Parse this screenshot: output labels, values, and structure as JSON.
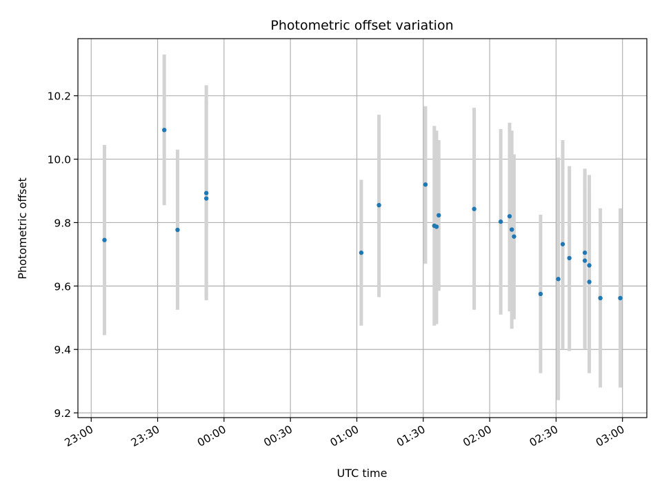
{
  "chart_data": {
    "type": "scatter",
    "title": "Photometric offset variation",
    "xlabel": "UTC time",
    "ylabel": "Photometric offset",
    "grid": true,
    "x_axis": {
      "kind": "time",
      "range": [
        "22:54",
        "03:11"
      ],
      "ticks": [
        "23:00",
        "23:30",
        "00:00",
        "00:30",
        "01:00",
        "01:30",
        "02:00",
        "02:30",
        "03:00"
      ]
    },
    "y_axis": {
      "range": [
        9.185,
        10.38
      ],
      "ticks": [
        "9.2",
        "9.4",
        "9.6",
        "9.8",
        "10.0",
        "10.2"
      ]
    },
    "colors": {
      "points": "#1f77b4",
      "errorbars": "#d3d3d3",
      "grid": "#b0b0b0"
    },
    "points": [
      {
        "time": "23:06",
        "y": 9.745,
        "ylow": 9.445,
        "yhigh": 10.045
      },
      {
        "time": "23:33",
        "y": 10.092,
        "ylow": 9.855,
        "yhigh": 10.33
      },
      {
        "time": "23:39",
        "y": 9.777,
        "ylow": 9.525,
        "yhigh": 10.03
      },
      {
        "time": "23:52",
        "y": 9.893,
        "ylow": 9.555,
        "yhigh": 10.233
      },
      {
        "time": "23:52",
        "y": 9.876,
        "ylow": 9.565,
        "yhigh": 10.185
      },
      {
        "time": "01:02",
        "y": 9.705,
        "ylow": 9.475,
        "yhigh": 9.935
      },
      {
        "time": "01:10",
        "y": 9.855,
        "ylow": 9.565,
        "yhigh": 10.14
      },
      {
        "time": "01:31",
        "y": 9.92,
        "ylow": 9.67,
        "yhigh": 10.167
      },
      {
        "time": "01:35",
        "y": 9.79,
        "ylow": 9.475,
        "yhigh": 10.105
      },
      {
        "time": "01:36",
        "y": 9.787,
        "ylow": 9.48,
        "yhigh": 10.09
      },
      {
        "time": "01:37",
        "y": 9.823,
        "ylow": 9.585,
        "yhigh": 10.06
      },
      {
        "time": "01:53",
        "y": 9.843,
        "ylow": 9.525,
        "yhigh": 10.162
      },
      {
        "time": "02:05",
        "y": 9.803,
        "ylow": 9.51,
        "yhigh": 10.095
      },
      {
        "time": "02:09",
        "y": 9.82,
        "ylow": 9.52,
        "yhigh": 10.115
      },
      {
        "time": "02:10",
        "y": 9.778,
        "ylow": 9.465,
        "yhigh": 10.09
      },
      {
        "time": "02:11",
        "y": 9.756,
        "ylow": 9.495,
        "yhigh": 10.015
      },
      {
        "time": "02:23",
        "y": 9.575,
        "ylow": 9.325,
        "yhigh": 9.825
      },
      {
        "time": "02:31",
        "y": 9.622,
        "ylow": 9.24,
        "yhigh": 10.005
      },
      {
        "time": "02:33",
        "y": 9.732,
        "ylow": 9.4,
        "yhigh": 10.06
      },
      {
        "time": "02:36",
        "y": 9.688,
        "ylow": 9.395,
        "yhigh": 9.978
      },
      {
        "time": "02:43",
        "y": 9.705,
        "ylow": 9.405,
        "yhigh": 9.97
      },
      {
        "time": "02:43",
        "y": 9.68,
        "ylow": 9.4,
        "yhigh": 9.96
      },
      {
        "time": "02:45",
        "y": 9.665,
        "ylow": 9.385,
        "yhigh": 9.95
      },
      {
        "time": "02:45",
        "y": 9.613,
        "ylow": 9.325,
        "yhigh": 9.895
      },
      {
        "time": "02:50",
        "y": 9.562,
        "ylow": 9.28,
        "yhigh": 9.845
      },
      {
        "time": "02:59",
        "y": 9.562,
        "ylow": 9.28,
        "yhigh": 9.845
      }
    ]
  }
}
